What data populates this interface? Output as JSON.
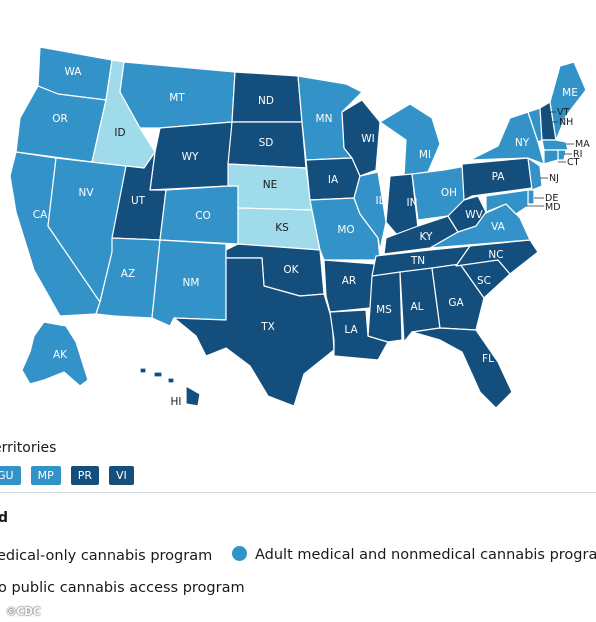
{
  "colors": {
    "medical_only": "#134e7c",
    "adult_medical_nonmedical": "#3393c8",
    "no_public_program": "#9fdbea",
    "border": "#ffffff"
  },
  "states": [
    {
      "abbr": "WA",
      "category": "adult_medical_nonmedical"
    },
    {
      "abbr": "OR",
      "category": "adult_medical_nonmedical"
    },
    {
      "abbr": "CA",
      "category": "adult_medical_nonmedical"
    },
    {
      "abbr": "NV",
      "category": "adult_medical_nonmedical"
    },
    {
      "abbr": "ID",
      "category": "no_public_program"
    },
    {
      "abbr": "MT",
      "category": "adult_medical_nonmedical"
    },
    {
      "abbr": "WY",
      "category": "medical_only"
    },
    {
      "abbr": "UT",
      "category": "medical_only"
    },
    {
      "abbr": "AZ",
      "category": "adult_medical_nonmedical"
    },
    {
      "abbr": "CO",
      "category": "adult_medical_nonmedical"
    },
    {
      "abbr": "NM",
      "category": "adult_medical_nonmedical"
    },
    {
      "abbr": "ND",
      "category": "medical_only"
    },
    {
      "abbr": "SD",
      "category": "medical_only"
    },
    {
      "abbr": "NE",
      "category": "no_public_program"
    },
    {
      "abbr": "KS",
      "category": "no_public_program"
    },
    {
      "abbr": "OK",
      "category": "medical_only"
    },
    {
      "abbr": "TX",
      "category": "medical_only"
    },
    {
      "abbr": "MN",
      "category": "adult_medical_nonmedical"
    },
    {
      "abbr": "IA",
      "category": "medical_only"
    },
    {
      "abbr": "MO",
      "category": "adult_medical_nonmedical"
    },
    {
      "abbr": "AR",
      "category": "medical_only"
    },
    {
      "abbr": "LA",
      "category": "medical_only"
    },
    {
      "abbr": "WI",
      "category": "medical_only"
    },
    {
      "abbr": "IL",
      "category": "adult_medical_nonmedical"
    },
    {
      "abbr": "MI",
      "category": "adult_medical_nonmedical"
    },
    {
      "abbr": "IN",
      "category": "medical_only"
    },
    {
      "abbr": "OH",
      "category": "adult_medical_nonmedical"
    },
    {
      "abbr": "KY",
      "category": "medical_only"
    },
    {
      "abbr": "TN",
      "category": "medical_only"
    },
    {
      "abbr": "MS",
      "category": "medical_only"
    },
    {
      "abbr": "AL",
      "category": "medical_only"
    },
    {
      "abbr": "GA",
      "category": "medical_only"
    },
    {
      "abbr": "FL",
      "category": "medical_only"
    },
    {
      "abbr": "SC",
      "category": "medical_only"
    },
    {
      "abbr": "NC",
      "category": "medical_only"
    },
    {
      "abbr": "VA",
      "category": "adult_medical_nonmedical"
    },
    {
      "abbr": "WV",
      "category": "medical_only"
    },
    {
      "abbr": "PA",
      "category": "medical_only"
    },
    {
      "abbr": "NY",
      "category": "adult_medical_nonmedical"
    },
    {
      "abbr": "VT",
      "category": "adult_medical_nonmedical"
    },
    {
      "abbr": "NH",
      "category": "medical_only"
    },
    {
      "abbr": "ME",
      "category": "adult_medical_nonmedical"
    },
    {
      "abbr": "MA",
      "category": "adult_medical_nonmedical"
    },
    {
      "abbr": "RI",
      "category": "adult_medical_nonmedical"
    },
    {
      "abbr": "CT",
      "category": "adult_medical_nonmedical"
    },
    {
      "abbr": "NJ",
      "category": "adult_medical_nonmedical"
    },
    {
      "abbr": "DE",
      "category": "adult_medical_nonmedical"
    },
    {
      "abbr": "MD",
      "category": "adult_medical_nonmedical"
    },
    {
      "abbr": "AK",
      "category": "adult_medical_nonmedical"
    },
    {
      "abbr": "HI",
      "category": "medical_only"
    }
  ],
  "territories": {
    "title": "erritories",
    "items": [
      {
        "label": "GU",
        "category": "adult_medical_nonmedical"
      },
      {
        "label": "MP",
        "category": "adult_medical_nonmedical"
      },
      {
        "label": "PR",
        "category": "medical_only"
      },
      {
        "label": "VI",
        "category": "medical_only"
      }
    ]
  },
  "legend": {
    "title": "nd",
    "items": [
      {
        "label": "edical-only cannabis program",
        "category": "medical_only"
      },
      {
        "label": "Adult medical and nonmedical cannabis progra",
        "category": "adult_medical_nonmedical"
      },
      {
        "label": "o public cannabis access program",
        "category": "no_public_program"
      }
    ]
  },
  "credit": "©CDC"
}
